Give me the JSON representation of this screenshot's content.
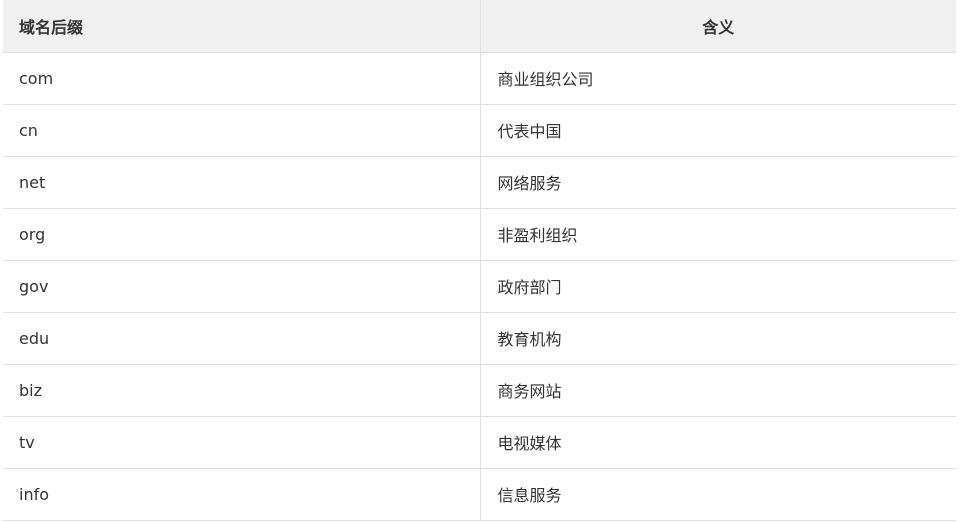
{
  "table": {
    "headers": [
      "域名后缀",
      "含义"
    ],
    "rows": [
      [
        "com",
        "商业组织公司"
      ],
      [
        "cn",
        "代表中国"
      ],
      [
        "net",
        "网络服务"
      ],
      [
        "org",
        "非盈利组织"
      ],
      [
        "gov",
        "政府部门"
      ],
      [
        "edu",
        "教育机构"
      ],
      [
        "biz",
        "商务网站"
      ],
      [
        "tv",
        "电视媒体"
      ],
      [
        "info",
        "信息服务"
      ]
    ]
  }
}
